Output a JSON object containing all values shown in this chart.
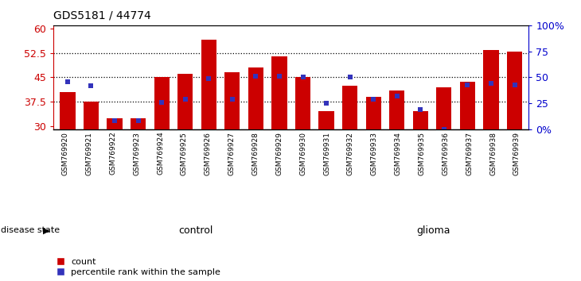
{
  "title": "GDS5181 / 44774",
  "samples": [
    "GSM769920",
    "GSM769921",
    "GSM769922",
    "GSM769923",
    "GSM769924",
    "GSM769925",
    "GSM769926",
    "GSM769927",
    "GSM769928",
    "GSM769929",
    "GSM769930",
    "GSM769931",
    "GSM769932",
    "GSM769933",
    "GSM769934",
    "GSM769935",
    "GSM769936",
    "GSM769937",
    "GSM769938",
    "GSM769939"
  ],
  "bar_heights": [
    40.5,
    37.5,
    32.5,
    32.5,
    45.0,
    46.0,
    56.5,
    46.5,
    48.0,
    51.5,
    45.0,
    34.5,
    42.5,
    39.0,
    41.0,
    34.5,
    42.0,
    43.5,
    53.5,
    53.0
  ],
  "blue_pct_vals": [
    46,
    42,
    8,
    8,
    26,
    29,
    49,
    29,
    51,
    51,
    50,
    25,
    50,
    29,
    32,
    19,
    0,
    43,
    44,
    43
  ],
  "control_count": 12,
  "glioma_count": 8,
  "ymin": 29,
  "ymax": 61,
  "yticks_left": [
    30,
    37.5,
    45,
    52.5,
    60
  ],
  "yticks_right": [
    0,
    25,
    50,
    75,
    100
  ],
  "yticks_right_labels": [
    "0%",
    "25",
    "50",
    "75",
    "100%"
  ],
  "bar_color": "#cc0000",
  "blue_color": "#3333bb",
  "control_color": "#ccffcc",
  "glioma_color": "#55ee55",
  "col_bg_color": "#cccccc",
  "left_tick_color": "#cc0000",
  "right_tick_color": "#0000cc",
  "disease_state_label": "disease state",
  "control_label": "control",
  "glioma_label": "glioma",
  "legend_count": "count",
  "legend_pct": "percentile rank within the sample"
}
